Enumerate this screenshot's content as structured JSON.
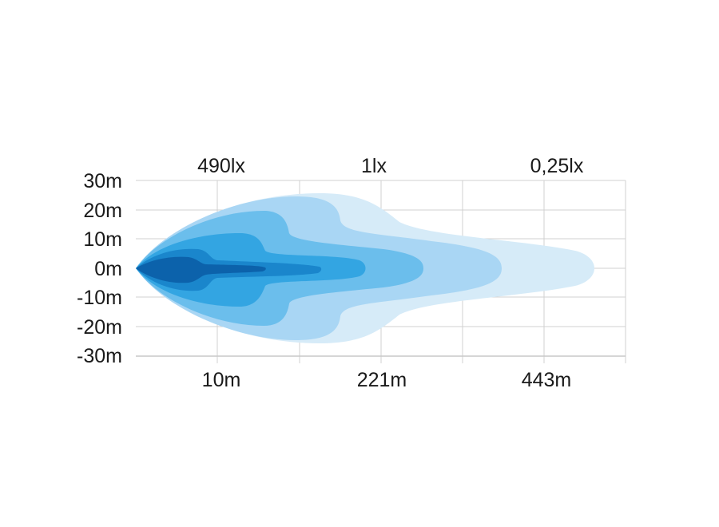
{
  "colors": {
    "zone_1": "#d6ebf8",
    "zone_2": "#a9d6f4",
    "zone_3": "#6bbeec",
    "zone_4": "#33a5e2",
    "zone_5": "#1a86cc",
    "zone_6": "#0c62ab",
    "grid": "#d0d0d0"
  },
  "y_axis": {
    "ticks": [
      "30m",
      "20m",
      "10m",
      "0m",
      "-10m",
      "-20m",
      "-30m"
    ]
  },
  "x_axis": {
    "ticks": [
      "10m",
      "221m",
      "443m"
    ]
  },
  "lux_labels": [
    "490lx",
    "1lx",
    "0,25lx"
  ]
}
